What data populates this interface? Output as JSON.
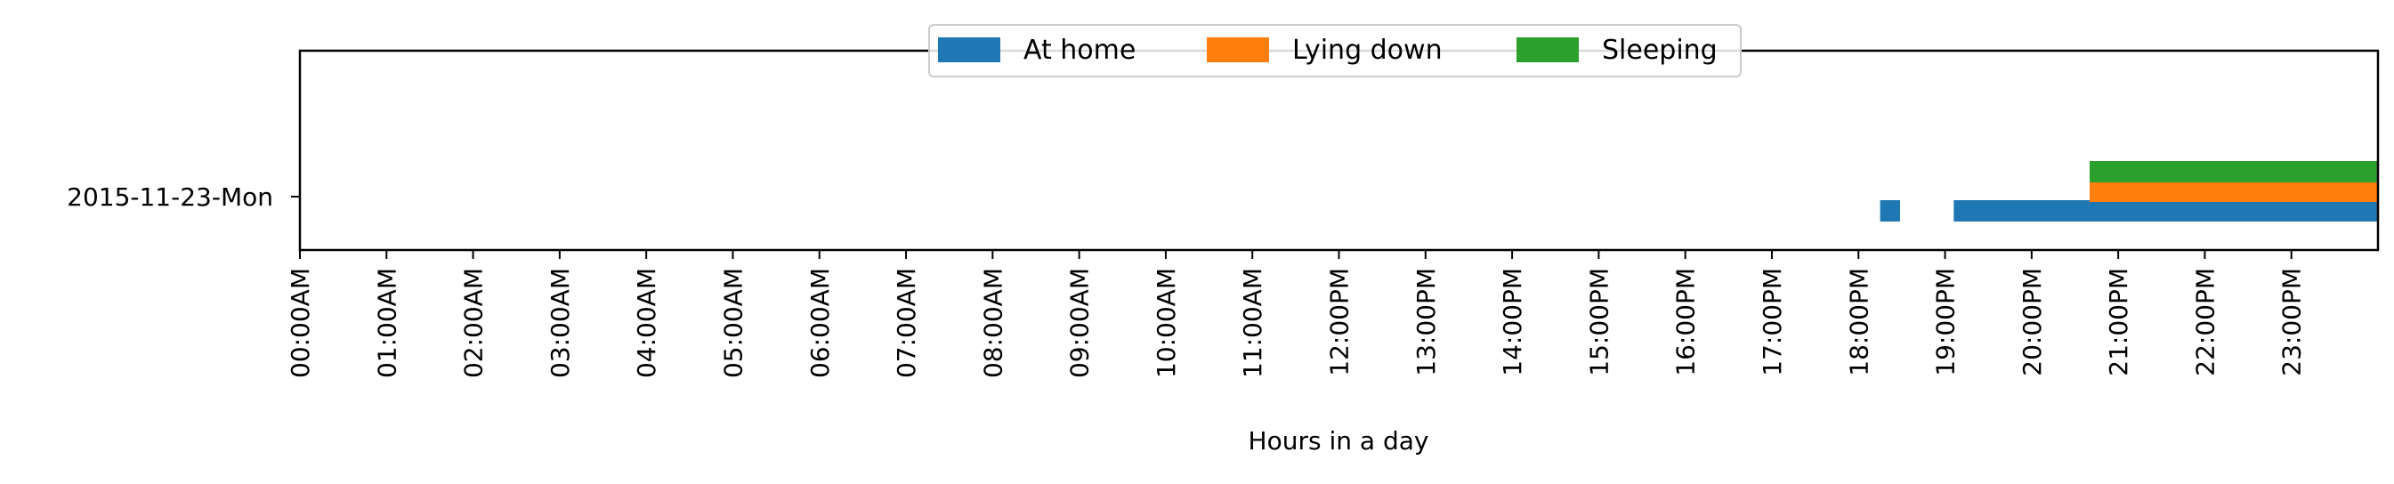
{
  "chart_data": {
    "type": "bar",
    "orientation": "horizontal",
    "xlabel": "Hours in a day",
    "xlim": [
      0,
      24
    ],
    "x_ticks": [
      {
        "value": 0,
        "label": "00:00AM"
      },
      {
        "value": 1,
        "label": "01:00AM"
      },
      {
        "value": 2,
        "label": "02:00AM"
      },
      {
        "value": 3,
        "label": "03:00AM"
      },
      {
        "value": 4,
        "label": "04:00AM"
      },
      {
        "value": 5,
        "label": "05:00AM"
      },
      {
        "value": 6,
        "label": "06:00AM"
      },
      {
        "value": 7,
        "label": "07:00AM"
      },
      {
        "value": 8,
        "label": "08:00AM"
      },
      {
        "value": 9,
        "label": "09:00AM"
      },
      {
        "value": 10,
        "label": "10:00AM"
      },
      {
        "value": 11,
        "label": "11:00AM"
      },
      {
        "value": 12,
        "label": "12:00PM"
      },
      {
        "value": 13,
        "label": "13:00PM"
      },
      {
        "value": 14,
        "label": "14:00PM"
      },
      {
        "value": 15,
        "label": "15:00PM"
      },
      {
        "value": 16,
        "label": "16:00PM"
      },
      {
        "value": 17,
        "label": "17:00PM"
      },
      {
        "value": 18,
        "label": "18:00PM"
      },
      {
        "value": 19,
        "label": "19:00PM"
      },
      {
        "value": 20,
        "label": "20:00PM"
      },
      {
        "value": 21,
        "label": "21:00PM"
      },
      {
        "value": 22,
        "label": "22:00PM"
      },
      {
        "value": 23,
        "label": "23:00PM"
      }
    ],
    "categories": [
      "2015-11-23-Mon"
    ],
    "legend_position": "top-center",
    "grid": false,
    "series": [
      {
        "name": "At home",
        "color": "#1f77b4",
        "lane": 0,
        "intervals": [
          {
            "category": "2015-11-23-Mon",
            "start": 18.25,
            "end": 18.48
          },
          {
            "category": "2015-11-23-Mon",
            "start": 19.1,
            "end": 24.0
          }
        ]
      },
      {
        "name": "Lying down",
        "color": "#ff7f0e",
        "lane": 1,
        "intervals": [
          {
            "category": "2015-11-23-Mon",
            "start": 20.67,
            "end": 24.0
          }
        ]
      },
      {
        "name": "Sleeping",
        "color": "#2ca02c",
        "lane": 2,
        "intervals": [
          {
            "category": "2015-11-23-Mon",
            "start": 20.67,
            "end": 24.0
          }
        ]
      }
    ]
  }
}
